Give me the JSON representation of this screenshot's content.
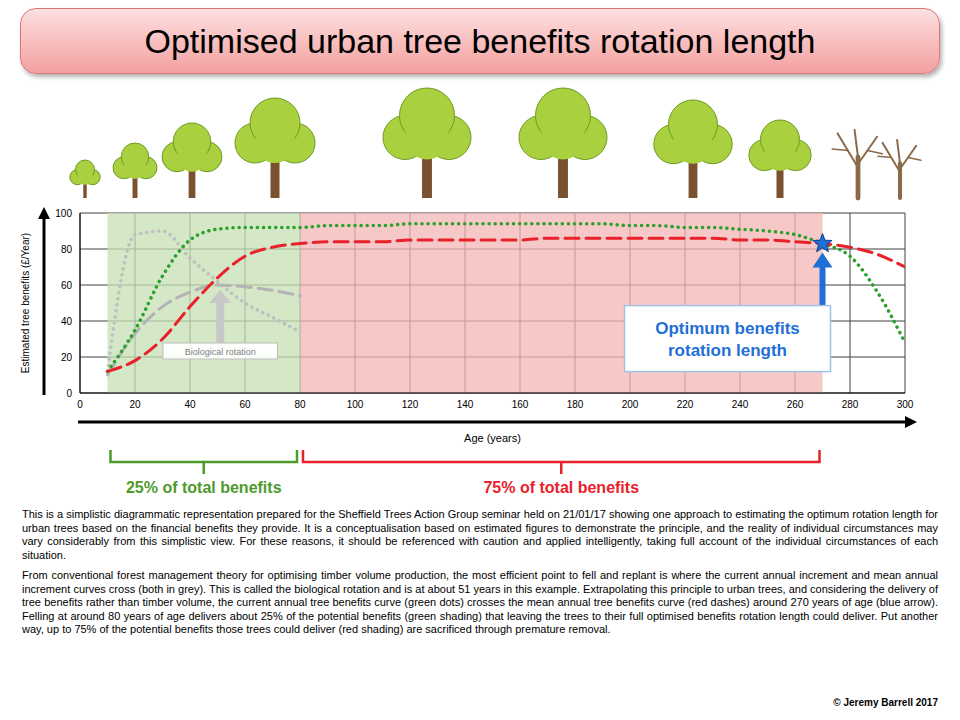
{
  "chart_data": {
    "type": "line",
    "title": "Optimised urban tree benefits rotation length",
    "x_label": "Age (years)",
    "y_label": "Estimated tree benefits (£/Year)",
    "x": [
      10,
      20,
      30,
      40,
      50,
      60,
      70,
      80,
      90,
      100,
      110,
      120,
      130,
      140,
      150,
      160,
      170,
      180,
      190,
      200,
      210,
      220,
      230,
      240,
      250,
      260,
      270,
      280,
      290,
      300
    ],
    "series": [
      {
        "color": "#bfbfbf",
        "line_style": "dotted",
        "values": [
          12,
          88,
          90,
          75,
          62,
          50,
          42,
          34,
          null,
          null,
          null,
          null,
          null,
          null,
          null,
          null,
          null,
          null,
          null,
          null,
          null,
          null,
          null,
          null,
          null,
          null,
          null,
          null,
          null,
          null
        ]
      },
      {
        "color": "#b3b3b3",
        "line_style": "dashed",
        "values": [
          10,
          33,
          48,
          56,
          60,
          59,
          57,
          54,
          null,
          null,
          null,
          null,
          null,
          null,
          null,
          null,
          null,
          null,
          null,
          null,
          null,
          null,
          null,
          null,
          null,
          null,
          null,
          null,
          null,
          null
        ]
      },
      {
        "color": "#2ca02c",
        "line_style": "dotted",
        "values": [
          12,
          35,
          65,
          85,
          91,
          92,
          92,
          92,
          93,
          93,
          93,
          94,
          94,
          94,
          94,
          94,
          94,
          94,
          94,
          93,
          93,
          92,
          92,
          91,
          90,
          88,
          83,
          76,
          56,
          28
        ]
      },
      {
        "color": "#e8212a",
        "line_style": "dashed",
        "values": [
          12,
          18,
          30,
          48,
          64,
          76,
          81,
          83,
          84,
          84,
          84,
          85,
          85,
          85,
          85,
          85,
          86,
          86,
          86,
          86,
          86,
          86,
          86,
          85,
          85,
          84,
          83,
          81,
          77,
          70
        ]
      }
    ],
    "xlim": [
      0,
      300
    ],
    "xticks": [
      0,
      20,
      40,
      60,
      80,
      100,
      120,
      140,
      160,
      180,
      200,
      220,
      240,
      260,
      280,
      300
    ],
    "ylim": [
      0,
      100
    ],
    "yticks": [
      0,
      20,
      40,
      60,
      80,
      100
    ],
    "grid": true,
    "shaded_ranges": [
      {
        "x": [
          10,
          80
        ],
        "color": "#c5e0b4",
        "label": "25% of total benefits",
        "label_color": "#4e9a2c"
      },
      {
        "x": [
          80,
          270
        ],
        "color": "#f4b6b6",
        "label": "75% of total benefits",
        "label_color": "#e8212a"
      }
    ],
    "annotations": [
      {
        "text": "Biological rotation",
        "x": 51,
        "y": 60,
        "color": "#c8c8c8"
      },
      {
        "text": "Optimum benefits rotation length",
        "x": 270,
        "y": 83,
        "color": "#1f6fd6",
        "marker": "star"
      }
    ],
    "notes": [
      "This is a simplistic diagrammatic representation prepared for the Sheffield Trees Action Group seminar held on 21/01/17 showing one approach to estimating the optimum rotation length for urban trees based on the financial benefits they provide. It is a conceptualisation based on estimated figures to demonstrate the principle, and the reality of individual circumstances may vary considerably from this simplistic view. For these reasons, it should be referenced with caution and applied intelligently, taking full account of the individual circumstances of each situation.",
      "From conventional forest management theory for optimising timber volume production, the most efficient point to fell and replant is where the current annual increment and mean annual increment curves cross (both in grey). This is called the biological rotation and is at about 51 years in this example. Extrapolating this principle to urban trees, and considering the delivery of tree benefits rather than timber volume, the current annual tree benefits curve (green dots) crosses the mean annual tree benefits curve (red dashes) around 270 years of age (blue arrow). Felling at around 80 years of age delivers about 25% of the potential benefits (green shading) that leaving the trees to their full optimised benefits rotation length could deliver. Put another way, up to 75% of the potential benefits those trees could deliver (red shading) are sacrificed through premature removal."
    ],
    "credit": "© Jeremy Barrell 2017"
  }
}
